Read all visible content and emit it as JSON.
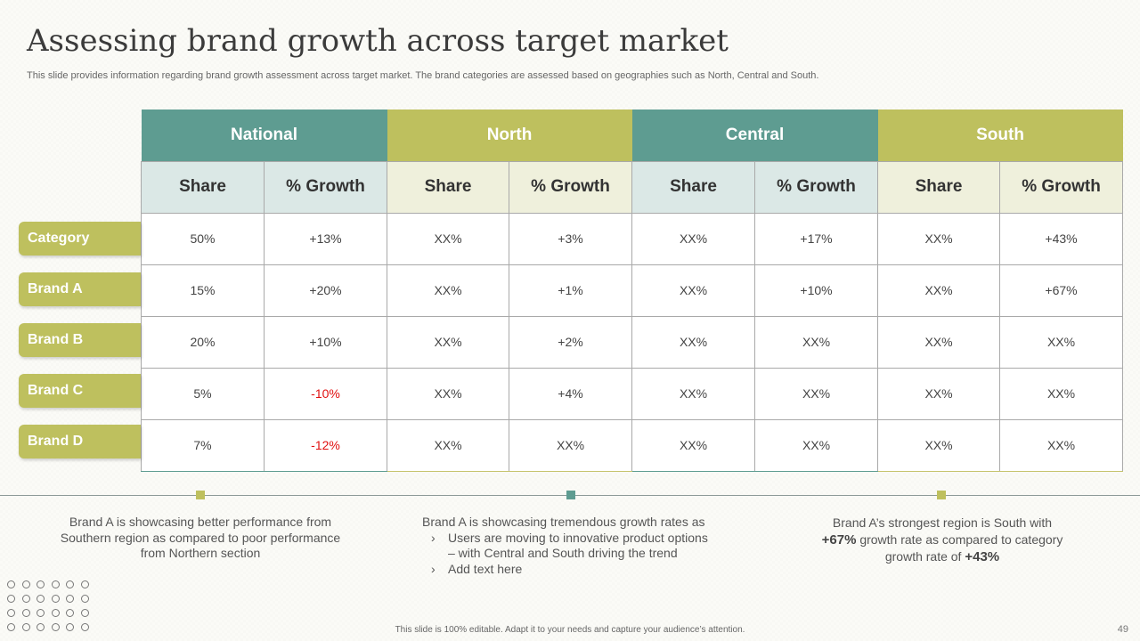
{
  "title": "Assessing brand growth across target market",
  "subtitle": "This slide provides information regarding brand growth assessment across target market. The brand categories are assessed based on geographies such as North, Central and South.",
  "colors": {
    "teal": "#5e9c91",
    "olive": "#bec05e",
    "teal_light": "#dbe8e6",
    "olive_light": "#eff0dc",
    "negative": "#e01010"
  },
  "table": {
    "regions": [
      "National",
      "North",
      "Central",
      "South"
    ],
    "sub_headers": [
      "Share",
      "% Growth",
      "Share",
      "% Growth",
      "Share",
      "% Growth",
      "Share",
      "% Growth"
    ],
    "row_labels": [
      "Category",
      "Brand A",
      "Brand B",
      "Brand C",
      "Brand D"
    ],
    "rows": [
      [
        "50%",
        "+13%",
        "XX%",
        "+3%",
        "XX%",
        "+17%",
        "XX%",
        "+43%"
      ],
      [
        "15%",
        "+20%",
        "XX%",
        "+1%",
        "XX%",
        "+10%",
        "XX%",
        "+67%"
      ],
      [
        "20%",
        "+10%",
        "XX%",
        "+2%",
        "XX%",
        "XX%",
        "XX%",
        "XX%"
      ],
      [
        "5%",
        "-10%",
        "XX%",
        "+4%",
        "XX%",
        "XX%",
        "XX%",
        "XX%"
      ],
      [
        "7%",
        "-12%",
        "XX%",
        "XX%",
        "XX%",
        "XX%",
        "XX%",
        "XX%"
      ]
    ]
  },
  "notes": {
    "left": {
      "line1": "Brand A is showcasing better performance from",
      "line2": "Southern region as compared to poor performance",
      "line3": "from Northern section"
    },
    "middle": {
      "heading": "Brand A is showcasing tremendous growth rates as",
      "bullet1_line1": "Users are moving to innovative product options",
      "bullet1_line2": "– with Central and South driving the trend",
      "bullet2": "Add text here"
    },
    "right": {
      "line1": "Brand A’s strongest region is South with",
      "highlight1": "+67%",
      "line2": " growth rate as compared to category",
      "line3": "growth rate of ",
      "highlight2": "+43%"
    }
  },
  "footer": "This slide is 100% editable. Adapt it to your needs and capture your audience’s attention.",
  "page_number": "49"
}
